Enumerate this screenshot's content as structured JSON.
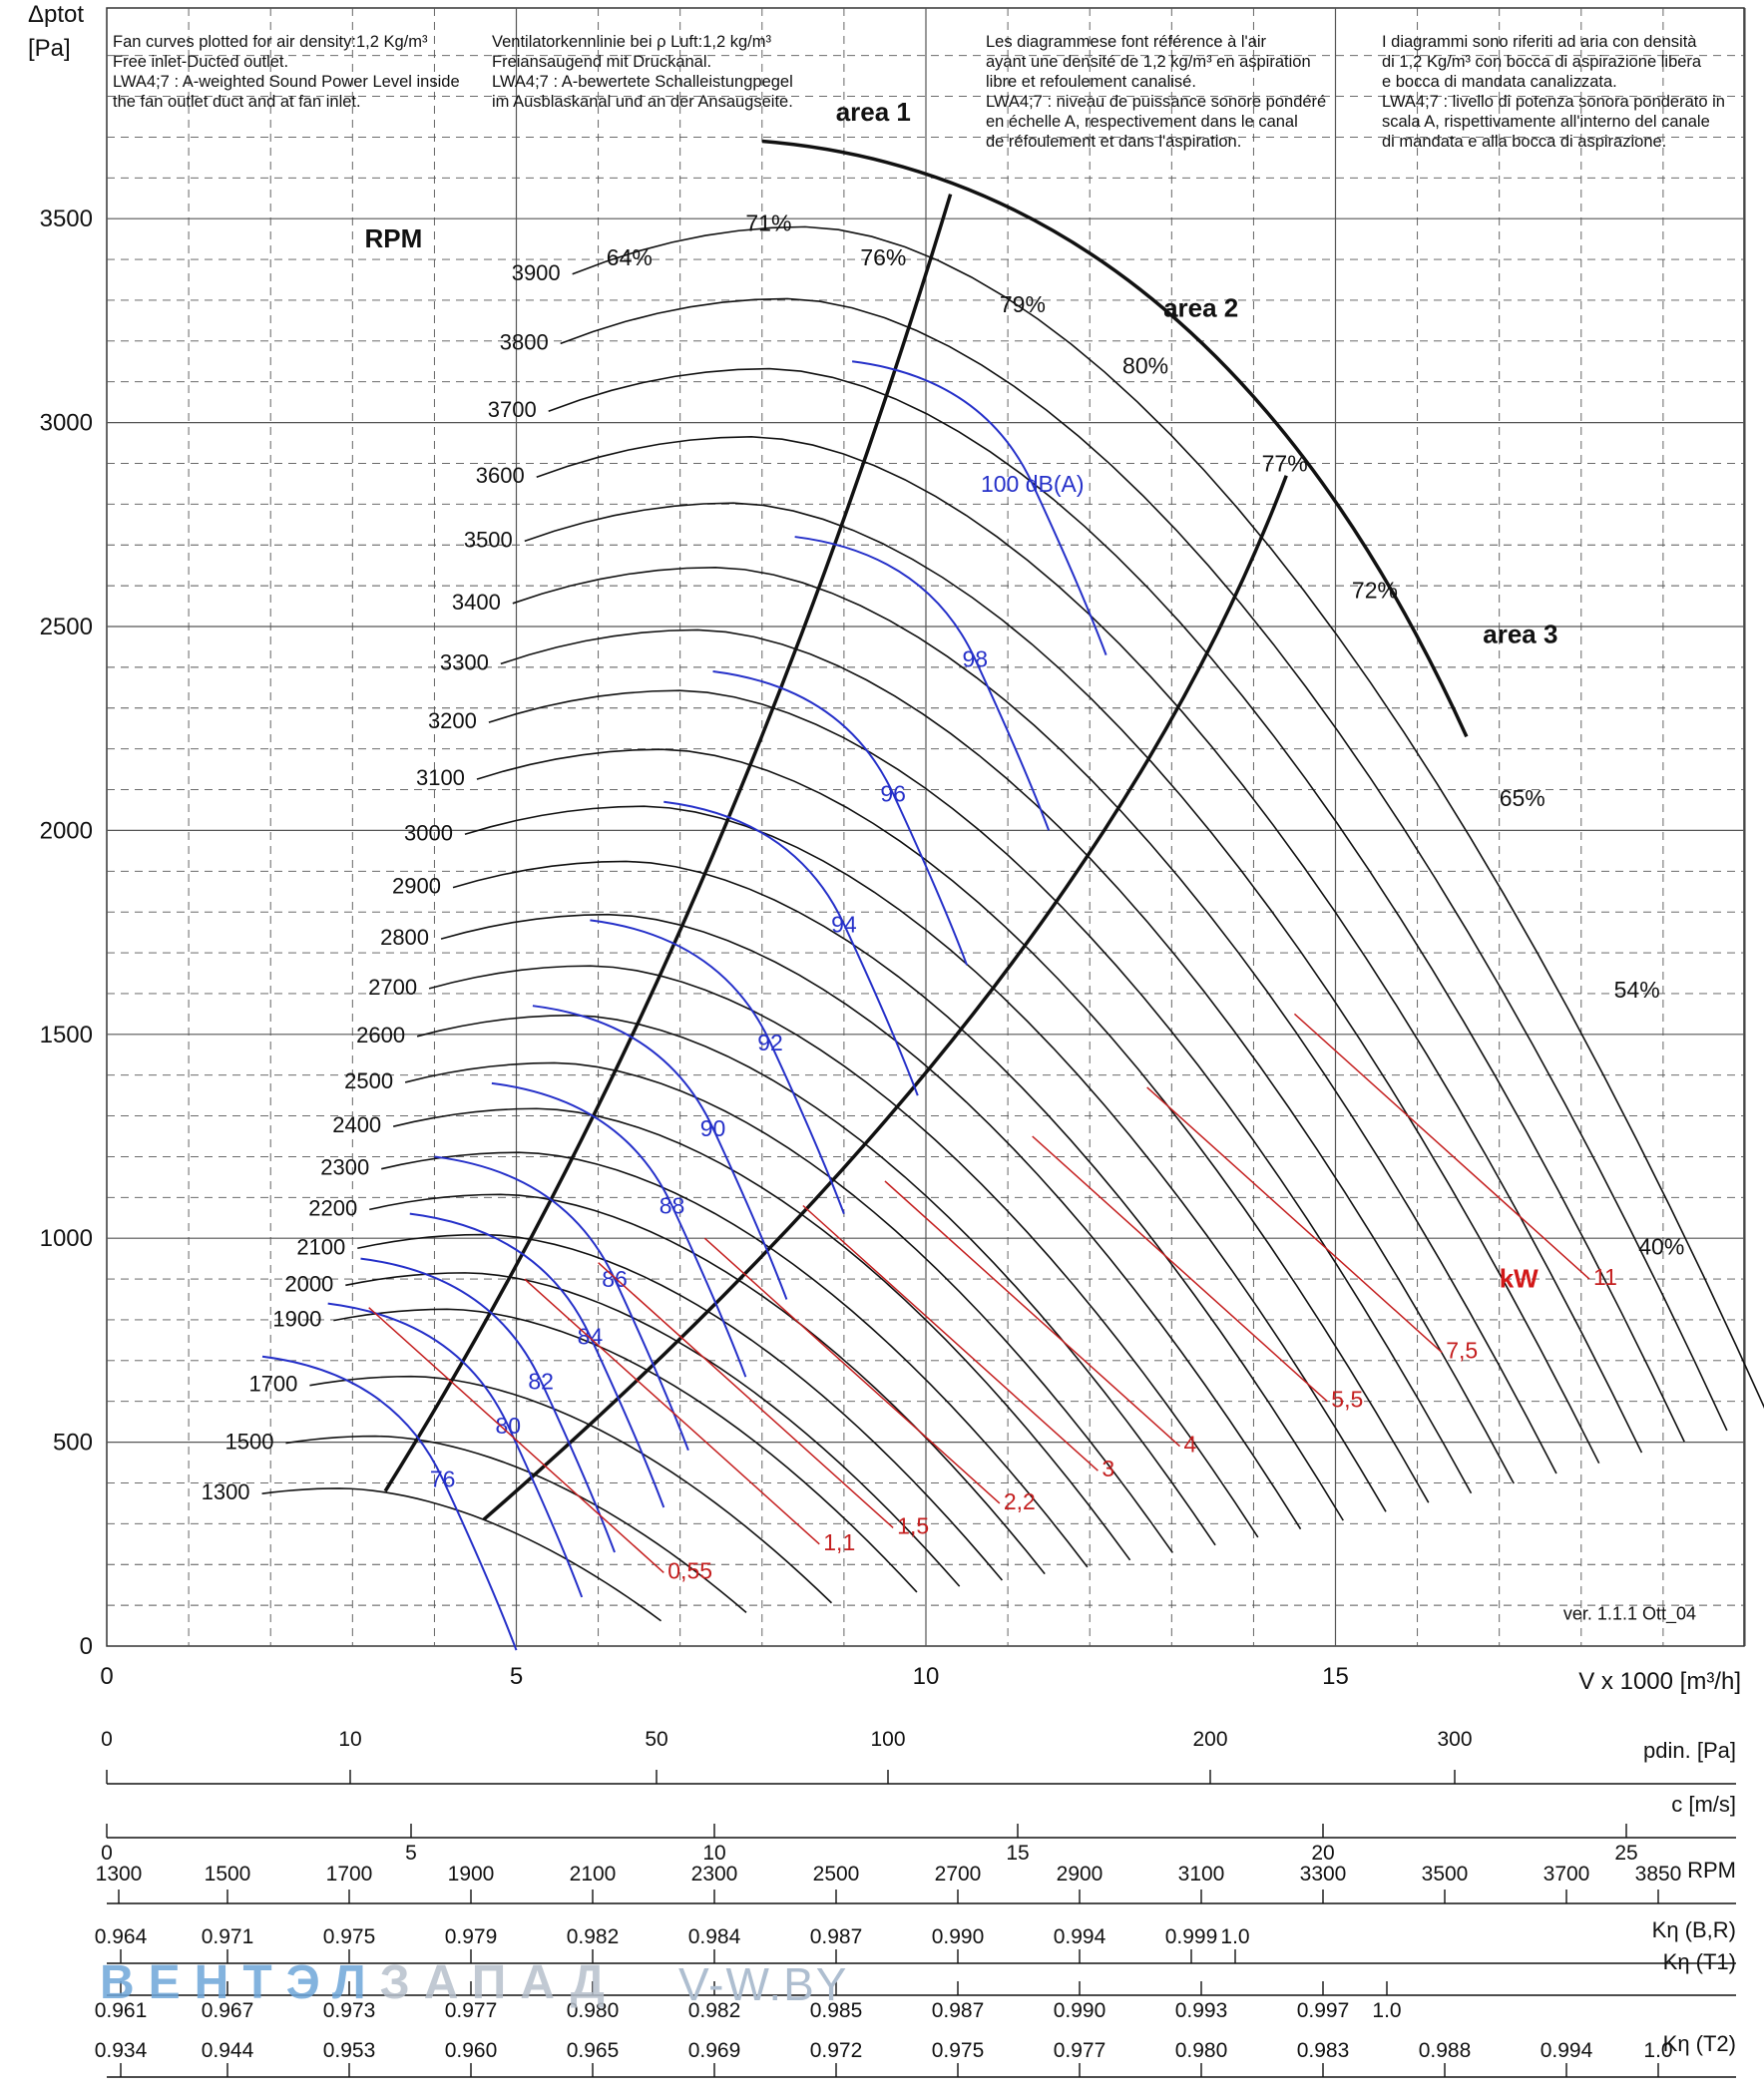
{
  "notes": [
    {
      "l1": "Fan curves plotted for air density:1,2 Kg/m³",
      "l2": "Free inlet-Ducted outlet.",
      "l3": "LWA4;7 : A-weighted Sound Power Level inside",
      "l4": "the fan outlet duct and at fan inlet."
    },
    {
      "l1": "Ventilatorkennlinie bei ρ Luft:1,2 kg/m³",
      "l2": "Freiansaugend mit Druckanal.",
      "l3": "LWA4;7 : A-bewertete Schalleistungpegel",
      "l4": "im Ausblaskanal und an der Ansaugseite."
    },
    {
      "l1": "Les diagrammese font référence à l'air",
      "l2": "ayant une densité de 1,2 kg/m³ en aspiration",
      "l3": "libre et refoulement canalisé.",
      "l4": "LWA4;7 : niveau de puissance sonore pondéré",
      "l5": "en échelle A, respectivement dans le canal",
      "l6": "de réfoulement et dans l'aspiration."
    },
    {
      "l1": "I diagrammi sono riferiti ad aria con densità",
      "l2": "di 1,2 Kg/m³ con bocca di aspirazione libera",
      "l3": "e bocca di mandata canalizzata.",
      "l4": "LWA4;7 : livello di potenza sonora ponderato in",
      "l5": "scala A, rispettivamente all'interno del canale",
      "l6": "di mandata e alla bocca di aspirazione."
    }
  ],
  "chart_data": {
    "type": "line",
    "ylabel": "Δptot\n[Pa]",
    "xlabel": "V x 1000 [m³/h]",
    "xlim": [
      0,
      20.5
    ],
    "ylim": [
      0,
      4000
    ],
    "xticks": [
      0,
      5,
      10,
      15
    ],
    "yticks": [
      0,
      500,
      1000,
      1500,
      2000,
      2500,
      3000,
      3500
    ],
    "grid": true,
    "rpm_label": "RPM",
    "rpm_curves": [
      1300,
      1500,
      1700,
      1900,
      2000,
      2100,
      2200,
      2300,
      2400,
      2500,
      2600,
      2700,
      2800,
      2900,
      3000,
      3100,
      3200,
      3300,
      3400,
      3500,
      3600,
      3700,
      3800,
      3900
    ],
    "rpm_max_pressure_at_3900": 3480,
    "rpm_max_flow_at_3900": 20.3,
    "efficiency_labels": [
      "64%",
      "71%",
      "76%",
      "79%",
      "80%",
      "77%",
      "72%",
      "65%",
      "54%",
      "40%"
    ],
    "area_labels": [
      "area 1",
      "area 2",
      "area 3"
    ],
    "sound_levels": [
      "76",
      "80",
      "82",
      "84",
      "86",
      "88",
      "90",
      "92",
      "94",
      "96",
      "98",
      "100 dB(A)"
    ],
    "power_label": "kW",
    "power_levels": [
      "0,55",
      "1,1",
      "1,5",
      "2,2",
      "3",
      "4",
      "5,5",
      "7,5",
      "11"
    ],
    "version": "ver. 1.1.1 Ott_04"
  },
  "scales": {
    "pdin": {
      "label": "pdin. [Pa]",
      "ticks": [
        "0",
        "10",
        "50",
        "100",
        "200",
        "300"
      ]
    },
    "c": {
      "label": "c [m/s]",
      "ticks": [
        "0",
        "5",
        "10",
        "15",
        "20",
        "25"
      ]
    },
    "rpm": {
      "label": "RPM",
      "ticks": [
        "1300",
        "1500",
        "1700",
        "1900",
        "2100",
        "2300",
        "2500",
        "2700",
        "2900",
        "3100",
        "3300",
        "3500",
        "3700",
        "3850"
      ]
    },
    "k_br": {
      "label": "Kη (B,R)",
      "ticks": [
        "0.964",
        "0.971",
        "0.975",
        "0.979",
        "0.982",
        "0.984",
        "0.987",
        "0.990",
        "0.994",
        "0.999",
        "1.0"
      ]
    },
    "k_t1": {
      "label": "Kη (T1)",
      "ticks": [
        "0.961",
        "0.967",
        "0.973",
        "0.977",
        "0.980",
        "0.982",
        "0.985",
        "0.987",
        "0.990",
        "0.993",
        "0.997",
        "1.0"
      ]
    },
    "k_t2": {
      "label": "Kη (T2)",
      "ticks": [
        "0.934",
        "0.944",
        "0.953",
        "0.960",
        "0.965",
        "0.969",
        "0.972",
        "0.975",
        "0.977",
        "0.980",
        "0.983",
        "0.988",
        "0.994",
        "1.0"
      ]
    }
  },
  "watermark": {
    "a": "ВЕНТЭЛ",
    "b": "ЗАПАД",
    "c": "V-W.BY"
  }
}
